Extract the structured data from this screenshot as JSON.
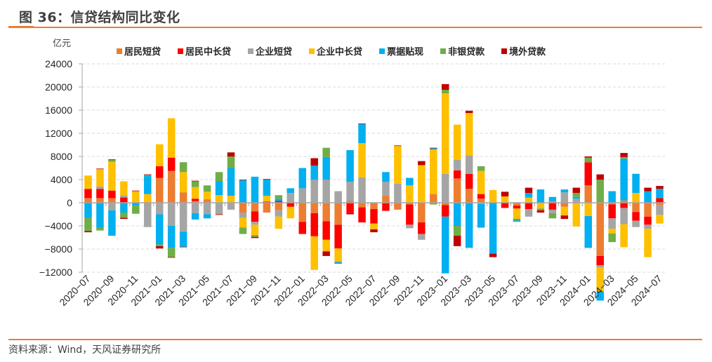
{
  "header": {
    "title": "图 36：信贷结构同比变化",
    "unit": "亿元"
  },
  "footer": {
    "source": "资料来源：Wind，天风证券研究所"
  },
  "chart_data": {
    "type": "bar",
    "stacked": true,
    "title": "信贷结构同比变化",
    "ylabel": "亿元",
    "xlabel": "",
    "ylim": [
      -12000,
      24000
    ],
    "yticks": [
      -12000,
      -8000,
      -4000,
      0,
      4000,
      8000,
      12000,
      16000,
      20000,
      24000
    ],
    "ytick_labels": [
      "−12000",
      "−8000",
      "−4000",
      "0",
      "4000",
      "8000",
      "12000",
      "16000",
      "20000",
      "24000"
    ],
    "grid": true,
    "legend_position": "top",
    "categories": [
      "2020-07",
      "2020-08",
      "2020-09",
      "2020-10",
      "2020-11",
      "2020-12",
      "2021-01",
      "2021-02",
      "2021-03",
      "2021-04",
      "2021-05",
      "2021-06",
      "2021-07",
      "2021-08",
      "2021-09",
      "2021-10",
      "2021-11",
      "2021-12",
      "2022-01",
      "2022-02",
      "2022-03",
      "2022-04",
      "2022-05",
      "2022-06",
      "2022-07",
      "2022-08",
      "2022-09",
      "2022-10",
      "2022-11",
      "2022-12",
      "2023-01",
      "2023-02",
      "2023-03",
      "2023-04",
      "2023-05",
      "2023-06",
      "2023-07",
      "2023-08",
      "2023-09",
      "2023-10",
      "2023-11",
      "2023-12",
      "2024-01",
      "2024-02",
      "2024-03",
      "2024-04",
      "2024-05",
      "2024-06",
      "2024-07"
    ],
    "xtick_labels": [
      "2020−07",
      "2020−09",
      "2020−11",
      "2021−01",
      "2021−03",
      "2021−05",
      "2021−07",
      "2021−09",
      "2021−11",
      "2022−01",
      "2022−03",
      "2022−05",
      "2022−07",
      "2022−09",
      "2022−11",
      "2023−01",
      "2023−03",
      "2023−05",
      "2023−07",
      "2023−09",
      "2023−11",
      "2024−01",
      "2024−03",
      "2024−05",
      "2024−07"
    ],
    "series": [
      {
        "name": "居民短贷",
        "color": "#ed7d31",
        "values": [
          800,
          800,
          800,
          0,
          0,
          -200,
          4300,
          5500,
          1800,
          300,
          600,
          0,
          0,
          -1700,
          -1500,
          -1700,
          -1300,
          200,
          -3300,
          -1800,
          -3200,
          -3800,
          300,
          -800,
          -1100,
          1200,
          -1200,
          -300,
          -3400,
          1500,
          -400,
          4200,
          2400,
          700,
          0,
          0,
          -500,
          0,
          0,
          300,
          -700,
          0,
          3000,
          -9200,
          -300,
          400,
          -1600,
          -2400,
          -400
        ],
        "neg_values": [
          0,
          0,
          0,
          0,
          0,
          0,
          0,
          0,
          0,
          0,
          0,
          0,
          0,
          0,
          0,
          0,
          0,
          0,
          0,
          0,
          0,
          0,
          0,
          0,
          0,
          0,
          0,
          0,
          0,
          0,
          0,
          0,
          0,
          0,
          0,
          0,
          0,
          0,
          0,
          0,
          0,
          0,
          0,
          0,
          0,
          0,
          0,
          0,
          0
        ]
      },
      {
        "name": "居民中长贷",
        "color": "#ff0000",
        "values": [
          1600,
          1600,
          1300,
          900,
          0,
          0,
          2000,
          2300,
          0,
          400,
          0,
          0,
          0,
          0,
          -1800,
          200,
          300,
          -700,
          -2100,
          -4000,
          -3200,
          -4100,
          -1800,
          -2600,
          -2500,
          -1400,
          0,
          -3500,
          -2000,
          0,
          -2000,
          1400,
          2600,
          800,
          0,
          -900,
          -500,
          -1100,
          0,
          -1200,
          0,
          0,
          4000,
          -1600,
          -2400,
          -900,
          -1500,
          -1400,
          800
        ],
        "neg_values": [
          0,
          0,
          0,
          0,
          0,
          0,
          0,
          0,
          0,
          0,
          0,
          0,
          0,
          0,
          0,
          0,
          0,
          0,
          0,
          0,
          0,
          0,
          0,
          0,
          0,
          0,
          0,
          0,
          0,
          0,
          0,
          0,
          0,
          0,
          0,
          0,
          0,
          0,
          0,
          0,
          0,
          0,
          0,
          0,
          0,
          0,
          0,
          0,
          0
        ]
      },
      {
        "name": "企业短贷",
        "color": "#a5a5a5",
        "values": [
          0,
          400,
          -1300,
          400,
          0,
          -4000,
          -2000,
          -4000,
          -5000,
          -1800,
          -2000,
          -2000,
          -1200,
          -900,
          -500,
          0,
          -1100,
          1500,
          2500,
          4000,
          4000,
          2000,
          3300,
          4400,
          0,
          2400,
          3300,
          -600,
          -1000,
          0,
          5000,
          1800,
          3200,
          -200,
          0,
          0,
          0,
          -1300,
          0,
          -600,
          1800,
          700,
          0,
          -400,
          -1800,
          -2800,
          -1100,
          -700,
          -1700
        ],
        "neg_values": [
          0,
          0,
          0,
          0,
          0,
          0,
          0,
          0,
          0,
          0,
          0,
          0,
          0,
          0,
          0,
          0,
          0,
          0,
          0,
          0,
          0,
          0,
          0,
          0,
          0,
          0,
          0,
          0,
          0,
          0,
          0,
          0,
          0,
          0,
          0,
          0,
          0,
          0,
          0,
          0,
          0,
          0,
          0,
          0,
          0,
          0,
          0,
          0,
          0
        ]
      },
      {
        "name": "企业中长贷",
        "color": "#ffc000",
        "values": [
          2300,
          3000,
          5000,
          2400,
          2000,
          1500,
          3800,
          6800,
          3500,
          2000,
          1300,
          1300,
          1200,
          -1700,
          -1800,
          1000,
          -2100,
          -2000,
          0,
          -5800,
          -2000,
          -2300,
          0,
          5900,
          -1000,
          0,
          6500,
          3000,
          6500,
          7700,
          13900,
          6100,
          7300,
          4000,
          2200,
          1100,
          -1800,
          900,
          -1000,
          0,
          -1500,
          -4100,
          -2300,
          -4100,
          -800,
          -4000,
          1700,
          -4900,
          -1500
        ],
        "neg_values": [
          0,
          0,
          0,
          0,
          0,
          0,
          0,
          0,
          0,
          0,
          0,
          0,
          0,
          0,
          0,
          0,
          0,
          0,
          0,
          0,
          0,
          0,
          0,
          0,
          0,
          0,
          0,
          0,
          0,
          0,
          0,
          0,
          0,
          0,
          0,
          0,
          0,
          0,
          0,
          0,
          0,
          0,
          0,
          0,
          0,
          0,
          0,
          0,
          0
        ]
      },
      {
        "name": "票据贴现",
        "color": "#00b0f0",
        "values": [
          -2600,
          -4300,
          -4400,
          -1700,
          -500,
          3100,
          -5200,
          -3800,
          -2600,
          -1100,
          -700,
          2400,
          4800,
          3900,
          4500,
          2800,
          400,
          800,
          3500,
          2400,
          3900,
          -200,
          5500,
          3300,
          0,
          1700,
          0,
          1300,
          0,
          200,
          -9800,
          -4000,
          -7800,
          -4100,
          -8800,
          0,
          -300,
          800,
          2300,
          700,
          500,
          300,
          -5500,
          -1600,
          2000,
          7200,
          3300,
          2000,
          1600
        ],
        "neg_values": [
          0,
          0,
          0,
          0,
          0,
          0,
          0,
          0,
          0,
          0,
          0,
          0,
          0,
          0,
          0,
          0,
          0,
          0,
          0,
          0,
          0,
          0,
          0,
          0,
          0,
          0,
          0,
          0,
          0,
          0,
          0,
          0,
          0,
          0,
          0,
          0,
          0,
          0,
          0,
          0,
          0,
          0,
          0,
          0,
          0,
          0,
          0,
          0,
          0
        ]
      },
      {
        "name": "非银贷款",
        "color": "#70ad47",
        "values": [
          -2300,
          -500,
          300,
          -900,
          -1400,
          200,
          -300,
          -1600,
          1700,
          1000,
          1100,
          1600,
          2000,
          -1100,
          -300,
          0,
          600,
          0,
          0,
          0,
          1600,
          0,
          0,
          0,
          0,
          0,
          0,
          0,
          0,
          -300,
          600,
          -1700,
          0,
          800,
          0,
          0,
          -200,
          0,
          -300,
          -900,
          0,
          700,
          800,
          4000,
          -1500,
          300,
          0,
          0,
          0
        ],
        "neg_values": [
          0,
          0,
          0,
          0,
          0,
          0,
          0,
          0,
          0,
          0,
          0,
          0,
          0,
          0,
          0,
          0,
          0,
          0,
          0,
          0,
          0,
          0,
          0,
          0,
          0,
          0,
          0,
          0,
          0,
          0,
          0,
          0,
          0,
          0,
          0,
          0,
          0,
          0,
          0,
          0,
          0,
          0,
          0,
          0,
          0,
          0,
          0,
          0,
          0
        ]
      },
      {
        "name": "境外贷款",
        "color": "#c00000",
        "values": [
          -200,
          100,
          100,
          -200,
          100,
          100,
          -400,
          -100,
          -100,
          100,
          0,
          -100,
          700,
          100,
          -200,
          100,
          0,
          0,
          0,
          1300,
          -800,
          -100,
          -200,
          100,
          -500,
          0,
          100,
          0,
          700,
          100,
          1000,
          -1800,
          400,
          0,
          -600,
          800,
          0,
          900,
          -400,
          0,
          -600,
          900,
          200,
          900,
          0,
          700,
          0,
          600,
          500
        ],
        "neg_values": [
          0,
          0,
          0,
          0,
          0,
          0,
          0,
          0,
          0,
          0,
          0,
          0,
          0,
          0,
          0,
          0,
          0,
          0,
          0,
          0,
          0,
          0,
          0,
          0,
          0,
          0,
          0,
          0,
          0,
          0,
          0,
          0,
          0,
          0,
          0,
          0,
          0,
          0,
          0,
          0,
          0,
          0,
          0,
          0,
          0,
          0,
          0,
          0,
          0
        ]
      }
    ]
  }
}
